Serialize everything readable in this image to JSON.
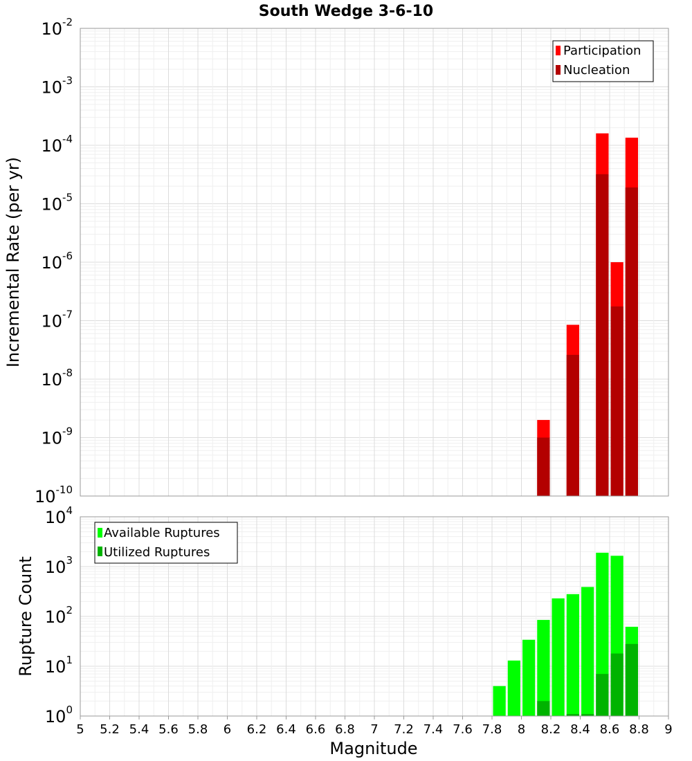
{
  "chart_data": [
    {
      "type": "bar",
      "panel": "top",
      "title": "South Wedge 3-6-10",
      "ylabel": "Incremental Rate (per yr)",
      "yscale": "log",
      "ylim_exp": [
        -10,
        -2
      ],
      "xlim": [
        5,
        9
      ],
      "bar_width": 0.1,
      "legend": {
        "position": "top-right",
        "entries": [
          "Participation",
          "Nucleation"
        ]
      },
      "series": [
        {
          "name": "Participation",
          "color": "#ff0000",
          "x": [
            8.15,
            8.35,
            8.55,
            8.65,
            8.75
          ],
          "values": [
            2e-09,
            8.5e-08,
            0.00016,
            1e-06,
            0.000135
          ]
        },
        {
          "name": "Nucleation",
          "color": "#b30000",
          "x": [
            8.15,
            8.35,
            8.55,
            8.65,
            8.75
          ],
          "values": [
            1e-09,
            2.6e-08,
            3.2e-05,
            1.75e-07,
            1.9e-05
          ]
        }
      ]
    },
    {
      "type": "bar",
      "panel": "bottom",
      "xlabel": "Magnitude",
      "ylabel": "Rupture Count",
      "yscale": "log",
      "ylim_exp": [
        0,
        4
      ],
      "xlim": [
        5,
        9
      ],
      "bar_width": 0.1,
      "xticks": [
        "5",
        "5.2",
        "5.4",
        "5.6",
        "5.8",
        "6",
        "6.2",
        "6.4",
        "6.6",
        "6.8",
        "7",
        "7.2",
        "7.4",
        "7.6",
        "7.8",
        "8",
        "8.2",
        "8.4",
        "8.6",
        "8.8",
        "9"
      ],
      "legend": {
        "position": "top-left",
        "entries": [
          "Available Ruptures",
          "Utilized Ruptures"
        ]
      },
      "series": [
        {
          "name": "Available Ruptures",
          "color": "#00ff00",
          "x": [
            7.85,
            7.95,
            8.05,
            8.15,
            8.25,
            8.35,
            8.45,
            8.55,
            8.65,
            8.75
          ],
          "values": [
            4,
            13,
            34,
            85,
            230,
            280,
            390,
            1900,
            1650,
            62
          ]
        },
        {
          "name": "Utilized Ruptures",
          "color": "#00b300",
          "x": [
            8.15,
            8.35,
            8.45,
            8.55,
            8.65,
            8.75
          ],
          "values": [
            2,
            1.1,
            1.1,
            7,
            18,
            28
          ]
        }
      ]
    }
  ]
}
